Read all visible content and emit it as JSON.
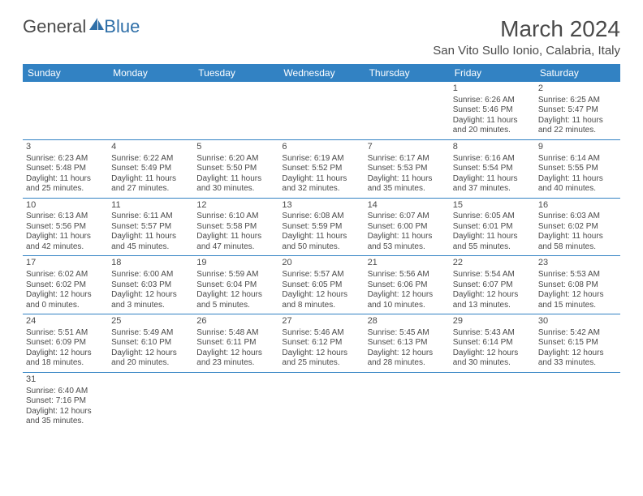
{
  "logo": {
    "general": "General",
    "blue": "Blue"
  },
  "title": "March 2024",
  "location": "San Vito Sullo Ionio, Calabria, Italy",
  "headers": [
    "Sunday",
    "Monday",
    "Tuesday",
    "Wednesday",
    "Thursday",
    "Friday",
    "Saturday"
  ],
  "colors": {
    "header_bg": "#3282c3",
    "header_text": "#ffffff",
    "cell_border": "#3282c3",
    "text": "#4a4a4a",
    "logo_blue": "#2f6fa8"
  },
  "weeks": [
    [
      null,
      null,
      null,
      null,
      null,
      {
        "n": "1",
        "sr": "6:26 AM",
        "ss": "5:46 PM",
        "dh": "11",
        "dm": "20"
      },
      {
        "n": "2",
        "sr": "6:25 AM",
        "ss": "5:47 PM",
        "dh": "11",
        "dm": "22"
      }
    ],
    [
      {
        "n": "3",
        "sr": "6:23 AM",
        "ss": "5:48 PM",
        "dh": "11",
        "dm": "25"
      },
      {
        "n": "4",
        "sr": "6:22 AM",
        "ss": "5:49 PM",
        "dh": "11",
        "dm": "27"
      },
      {
        "n": "5",
        "sr": "6:20 AM",
        "ss": "5:50 PM",
        "dh": "11",
        "dm": "30"
      },
      {
        "n": "6",
        "sr": "6:19 AM",
        "ss": "5:52 PM",
        "dh": "11",
        "dm": "32"
      },
      {
        "n": "7",
        "sr": "6:17 AM",
        "ss": "5:53 PM",
        "dh": "11",
        "dm": "35"
      },
      {
        "n": "8",
        "sr": "6:16 AM",
        "ss": "5:54 PM",
        "dh": "11",
        "dm": "37"
      },
      {
        "n": "9",
        "sr": "6:14 AM",
        "ss": "5:55 PM",
        "dh": "11",
        "dm": "40"
      }
    ],
    [
      {
        "n": "10",
        "sr": "6:13 AM",
        "ss": "5:56 PM",
        "dh": "11",
        "dm": "42"
      },
      {
        "n": "11",
        "sr": "6:11 AM",
        "ss": "5:57 PM",
        "dh": "11",
        "dm": "45"
      },
      {
        "n": "12",
        "sr": "6:10 AM",
        "ss": "5:58 PM",
        "dh": "11",
        "dm": "47"
      },
      {
        "n": "13",
        "sr": "6:08 AM",
        "ss": "5:59 PM",
        "dh": "11",
        "dm": "50"
      },
      {
        "n": "14",
        "sr": "6:07 AM",
        "ss": "6:00 PM",
        "dh": "11",
        "dm": "53"
      },
      {
        "n": "15",
        "sr": "6:05 AM",
        "ss": "6:01 PM",
        "dh": "11",
        "dm": "55"
      },
      {
        "n": "16",
        "sr": "6:03 AM",
        "ss": "6:02 PM",
        "dh": "11",
        "dm": "58"
      }
    ],
    [
      {
        "n": "17",
        "sr": "6:02 AM",
        "ss": "6:02 PM",
        "dh": "12",
        "dm": "0"
      },
      {
        "n": "18",
        "sr": "6:00 AM",
        "ss": "6:03 PM",
        "dh": "12",
        "dm": "3"
      },
      {
        "n": "19",
        "sr": "5:59 AM",
        "ss": "6:04 PM",
        "dh": "12",
        "dm": "5"
      },
      {
        "n": "20",
        "sr": "5:57 AM",
        "ss": "6:05 PM",
        "dh": "12",
        "dm": "8"
      },
      {
        "n": "21",
        "sr": "5:56 AM",
        "ss": "6:06 PM",
        "dh": "12",
        "dm": "10"
      },
      {
        "n": "22",
        "sr": "5:54 AM",
        "ss": "6:07 PM",
        "dh": "12",
        "dm": "13"
      },
      {
        "n": "23",
        "sr": "5:53 AM",
        "ss": "6:08 PM",
        "dh": "12",
        "dm": "15"
      }
    ],
    [
      {
        "n": "24",
        "sr": "5:51 AM",
        "ss": "6:09 PM",
        "dh": "12",
        "dm": "18"
      },
      {
        "n": "25",
        "sr": "5:49 AM",
        "ss": "6:10 PM",
        "dh": "12",
        "dm": "20"
      },
      {
        "n": "26",
        "sr": "5:48 AM",
        "ss": "6:11 PM",
        "dh": "12",
        "dm": "23"
      },
      {
        "n": "27",
        "sr": "5:46 AM",
        "ss": "6:12 PM",
        "dh": "12",
        "dm": "25"
      },
      {
        "n": "28",
        "sr": "5:45 AM",
        "ss": "6:13 PM",
        "dh": "12",
        "dm": "28"
      },
      {
        "n": "29",
        "sr": "5:43 AM",
        "ss": "6:14 PM",
        "dh": "12",
        "dm": "30"
      },
      {
        "n": "30",
        "sr": "5:42 AM",
        "ss": "6:15 PM",
        "dh": "12",
        "dm": "33"
      }
    ],
    [
      {
        "n": "31",
        "sr": "6:40 AM",
        "ss": "7:16 PM",
        "dh": "12",
        "dm": "35"
      },
      null,
      null,
      null,
      null,
      null,
      null
    ]
  ],
  "labels": {
    "sunrise": "Sunrise: ",
    "sunset": "Sunset: ",
    "daylight_prefix": "Daylight: ",
    "hours_infix": " hours",
    "and": "and ",
    "minutes_suffix": " minutes."
  }
}
